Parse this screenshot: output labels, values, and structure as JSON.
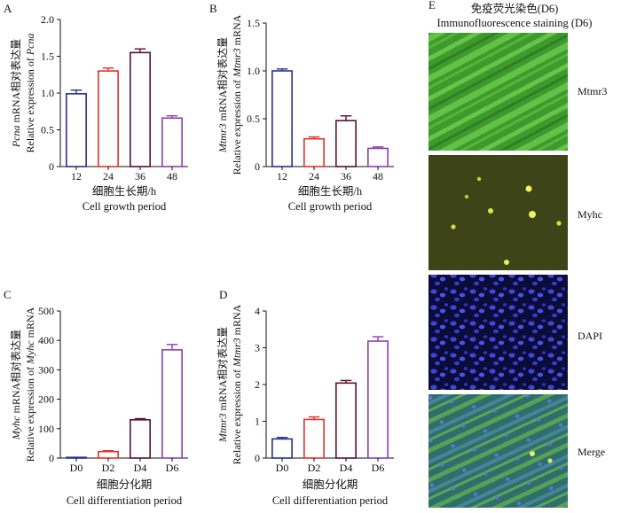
{
  "colors": {
    "blue": "#2b2f8f",
    "red": "#e0322b",
    "maroon": "#5a1030",
    "purple": "#8e3cb0"
  },
  "panel_e": {
    "letter": "E",
    "title_cn": "免疫荧光染色(D6)",
    "title_en": "Immunofluorescence staining (D6)",
    "rows": [
      {
        "label": "Mtmr3",
        "image": "green fluorescent myotube fibers"
      },
      {
        "label": "Myhc",
        "image": "dim olive-green field with bright yellow nuclei"
      },
      {
        "label": "DAPI",
        "image": "blue stained nuclei on dark background"
      },
      {
        "label": "Merge",
        "image": "green and blue overlay"
      }
    ]
  },
  "chart_data": [
    {
      "letter": "A",
      "type": "bar",
      "categories": [
        "12",
        "24",
        "36",
        "48"
      ],
      "values": [
        0.99,
        1.3,
        1.55,
        0.66
      ],
      "errors": [
        0.05,
        0.04,
        0.05,
        0.03
      ],
      "bar_colors": [
        "#2b2f8f",
        "#e0322b",
        "#5a1030",
        "#8e3cb0"
      ],
      "ylim": [
        0,
        2.0
      ],
      "yticks": [
        "0",
        "0.5",
        "1.0",
        "1.5",
        "2.0"
      ],
      "ylabel_cn_pre": "Pcna",
      "ylabel_cn_post": " mRNA相对表达量",
      "ylabel_en_pre": "Relative expression of ",
      "ylabel_en_it": "Pcna",
      "xlabel_cn": "细胞生长期/h",
      "xlabel_en": "Cell growth period"
    },
    {
      "letter": "B",
      "type": "bar",
      "categories": [
        "12",
        "24",
        "36",
        "48"
      ],
      "values": [
        1.0,
        0.29,
        0.48,
        0.19
      ],
      "errors": [
        0.02,
        0.02,
        0.05,
        0.015
      ],
      "bar_colors": [
        "#2b2f8f",
        "#e0322b",
        "#5a1030",
        "#8e3cb0"
      ],
      "ylim": [
        0,
        1.5
      ],
      "yticks": [
        "0",
        "0.5",
        "1.0",
        "1.5"
      ],
      "ylabel_cn_pre": "Mtmr3",
      "ylabel_cn_post": " mRNA相对表达量",
      "ylabel_en_pre": "Relative expression of ",
      "ylabel_en_it": "Mtmr3",
      "ylabel_en_post": " mRNA",
      "xlabel_cn": "细胞生长期/h",
      "xlabel_en": "Cell growth period"
    },
    {
      "letter": "C",
      "type": "bar",
      "categories": [
        "D0",
        "D2",
        "D4",
        "D6"
      ],
      "values": [
        1,
        22,
        130,
        368
      ],
      "errors": [
        0.3,
        3,
        4,
        18
      ],
      "bar_colors": [
        "#2b2f8f",
        "#e0322b",
        "#5a1030",
        "#8e3cb0"
      ],
      "ylim": [
        0,
        500
      ],
      "yticks": [
        "0",
        "100",
        "200",
        "300",
        "400",
        "500"
      ],
      "ylabel_cn_pre": "Myhc",
      "ylabel_cn_post": " mRNA相对表达量",
      "ylabel_en_pre": "Relative expression of ",
      "ylabel_en_it": "Myhc",
      "ylabel_en_post": " mRNA",
      "xlabel_cn": "细胞分化期",
      "xlabel_en": "Cell differentiation period"
    },
    {
      "letter": "D",
      "type": "bar",
      "categories": [
        "D0",
        "D2",
        "D4",
        "D6"
      ],
      "values": [
        0.52,
        1.05,
        2.04,
        3.18
      ],
      "errors": [
        0.04,
        0.07,
        0.07,
        0.12
      ],
      "bar_colors": [
        "#2b2f8f",
        "#e0322b",
        "#5a1030",
        "#8e3cb0"
      ],
      "ylim": [
        0,
        4
      ],
      "yticks": [
        "0",
        "1",
        "2",
        "3",
        "4"
      ],
      "ylabel_cn_pre": "Mtmr3",
      "ylabel_cn_post": " mRNA相对表达量",
      "ylabel_en_pre": "Relative expression of ",
      "ylabel_en_it": "Mtmr3",
      "ylabel_en_post": " mRNA",
      "xlabel_cn": "细胞分化期",
      "xlabel_en": "Cell differentiation period"
    }
  ]
}
